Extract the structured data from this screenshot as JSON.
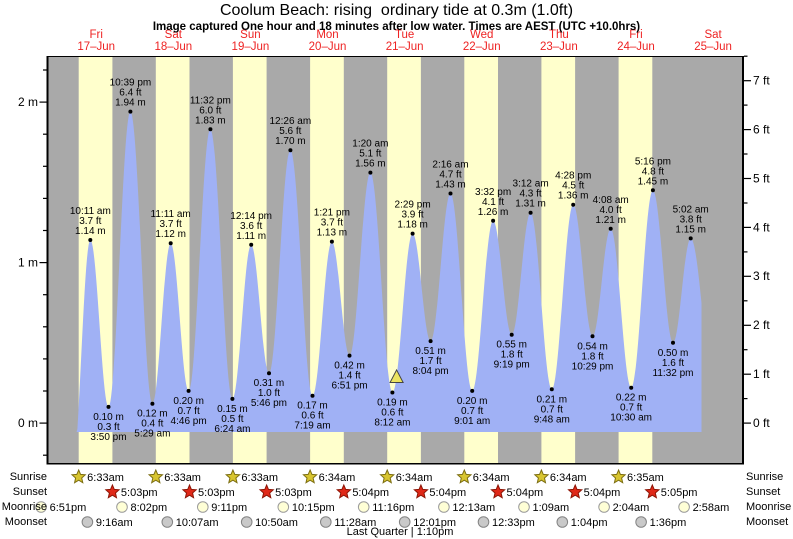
{
  "title": "Coolum Beach: rising  ordinary tide at 0.3m (1.0ft)",
  "subtitle": "Image captured One hour and 18 minutes after low water. Times are AEST (UTC +10.0hrs)",
  "days": [
    {
      "name": "Fri",
      "date": "17–Jun"
    },
    {
      "name": "Sat",
      "date": "18–Jun"
    },
    {
      "name": "Sun",
      "date": "19–Jun"
    },
    {
      "name": "Mon",
      "date": "20–Jun"
    },
    {
      "name": "Tue",
      "date": "21–Jun"
    },
    {
      "name": "Wed",
      "date": "22–Jun"
    },
    {
      "name": "Thu",
      "date": "23–Jun"
    },
    {
      "name": "Fri",
      "date": "24–Jun"
    },
    {
      "name": "Sat",
      "date": "25–Jun"
    }
  ],
  "axes": {
    "left_ticks": [
      {
        "v": 0,
        "label": "0 m"
      },
      {
        "v": 1,
        "label": "1 m"
      },
      {
        "v": 2,
        "label": "2 m"
      }
    ],
    "right_ticks": [
      {
        "v": 0,
        "label": "0 ft"
      },
      {
        "v": 1,
        "label": "1 ft"
      },
      {
        "v": 2,
        "label": "2 ft"
      },
      {
        "v": 3,
        "label": "3 ft"
      },
      {
        "v": 4,
        "label": "4 ft"
      },
      {
        "v": 5,
        "label": "5 ft"
      },
      {
        "v": 6,
        "label": "6 ft"
      },
      {
        "v": 7,
        "label": "7 ft"
      }
    ]
  },
  "rows": {
    "sunrise": {
      "label": "Sunrise",
      "events": [
        {
          "t": 6.55,
          "time": "6:33am"
        },
        {
          "t": 30.55,
          "time": "6:33am"
        },
        {
          "t": 54.55,
          "time": "6:33am"
        },
        {
          "t": 78.57,
          "time": "6:34am"
        },
        {
          "t": 102.57,
          "time": "6:34am"
        },
        {
          "t": 126.57,
          "time": "6:34am"
        },
        {
          "t": 150.57,
          "time": "6:34am"
        },
        {
          "t": 174.58,
          "time": "6:35am"
        }
      ]
    },
    "sunset": {
      "label": "Sunset",
      "events": [
        {
          "t": 17.05,
          "time": "5:03pm"
        },
        {
          "t": 41.05,
          "time": "5:03pm"
        },
        {
          "t": 65.05,
          "time": "5:03pm"
        },
        {
          "t": 89.07,
          "time": "5:04pm"
        },
        {
          "t": 113.07,
          "time": "5:04pm"
        },
        {
          "t": 137.07,
          "time": "5:04pm"
        },
        {
          "t": 161.07,
          "time": "5:04pm"
        },
        {
          "t": 185.08,
          "time": "5:05pm"
        }
      ]
    },
    "moonrise": {
      "label": "Moonrise",
      "events": [
        {
          "t": -5.15,
          "time": "6:51pm"
        },
        {
          "t": 20.03,
          "time": "8:02pm"
        },
        {
          "t": 45.18,
          "time": "9:11pm"
        },
        {
          "t": 70.25,
          "time": "10:15pm"
        },
        {
          "t": 95.27,
          "time": "11:16pm"
        },
        {
          "t": 120.22,
          "time": "12:13am"
        },
        {
          "t": 145.15,
          "time": "1:09am"
        },
        {
          "t": 170.07,
          "time": "2:04am"
        },
        {
          "t": 194.97,
          "time": "2:58am"
        }
      ]
    },
    "moonset": {
      "label": "Moonset",
      "events": [
        {
          "t": 9.27,
          "time": "9:16am"
        },
        {
          "t": 34.12,
          "time": "10:07am"
        },
        {
          "t": 58.83,
          "time": "10:50am"
        },
        {
          "t": 83.47,
          "time": "11:28am"
        },
        {
          "t": 108.02,
          "time": "12:01pm"
        },
        {
          "t": 132.55,
          "time": "12:33pm"
        },
        {
          "t": 157.07,
          "time": "1:04pm"
        },
        {
          "t": 181.6,
          "time": "1:36pm"
        }
      ]
    }
  },
  "moon_phase": "Last Quarter | 1:10pm",
  "chart_data": {
    "type": "area",
    "title": "Coolum Beach tide heights 17–25 Jun",
    "x_unit": "hours from Fri 17-Jun 00:00 AEST",
    "x_range": [
      -3,
      213
    ],
    "ylabel_left": "m",
    "ylabel_right": "ft",
    "ylim_m": [
      -0.25,
      2.28
    ],
    "ylim_ft": [
      0,
      7
    ],
    "extremes": [
      {
        "type": "high",
        "t": 10.18,
        "h": 1.14,
        "time": "10:11 am",
        "ft": "3.7 ft",
        "m": "1.14 m"
      },
      {
        "type": "low",
        "t": 15.83,
        "h": 0.1,
        "time": "3:50 pm",
        "ft": "0.3 ft",
        "m": "0.10 m"
      },
      {
        "type": "high",
        "t": 22.65,
        "h": 1.94,
        "time": "10:39 pm",
        "ft": "6.4 ft",
        "m": "1.94 m"
      },
      {
        "type": "low",
        "t": 29.48,
        "h": 0.12,
        "time": "5:29 am",
        "ft": "0.4 ft",
        "m": "0.12 m"
      },
      {
        "type": "high",
        "t": 35.18,
        "h": 1.12,
        "time": "11:11 am",
        "ft": "3.7 ft",
        "m": "1.12 m"
      },
      {
        "type": "low",
        "t": 40.77,
        "h": 0.2,
        "time": "4:46 pm",
        "ft": "0.7 ft",
        "m": "0.20 m"
      },
      {
        "type": "high",
        "t": 47.53,
        "h": 1.83,
        "time": "11:32 pm",
        "ft": "6.0 ft",
        "m": "1.83 m"
      },
      {
        "type": "low",
        "t": 54.4,
        "h": 0.15,
        "time": "6:24 am",
        "ft": "0.5 ft",
        "m": "0.15 m"
      },
      {
        "type": "high",
        "t": 60.23,
        "h": 1.11,
        "time": "12:14 pm",
        "ft": "3.6 ft",
        "m": "1.11 m"
      },
      {
        "type": "low",
        "t": 65.77,
        "h": 0.31,
        "time": "5:46 pm",
        "ft": "1.0 ft",
        "m": "0.31 m"
      },
      {
        "type": "high",
        "t": 72.43,
        "h": 1.7,
        "time": "12:26 am",
        "ft": "5.6 ft",
        "m": "1.70 m"
      },
      {
        "type": "low",
        "t": 79.32,
        "h": 0.17,
        "time": "7:19 am",
        "ft": "0.6 ft",
        "m": "0.17 m"
      },
      {
        "type": "high",
        "t": 85.35,
        "h": 1.13,
        "time": "1:21 pm",
        "ft": "3.7 ft",
        "m": "1.13 m"
      },
      {
        "type": "low",
        "t": 90.85,
        "h": 0.42,
        "time": "6:51 pm",
        "ft": "1.4 ft",
        "m": "0.42 m"
      },
      {
        "type": "high",
        "t": 97.33,
        "h": 1.56,
        "time": "1:20 am",
        "ft": "5.1 ft",
        "m": "1.56 m"
      },
      {
        "type": "low",
        "t": 104.2,
        "h": 0.19,
        "time": "8:12 am",
        "ft": "0.6 ft",
        "m": "0.19 m"
      },
      {
        "type": "high",
        "t": 110.48,
        "h": 1.18,
        "time": "2:29 pm",
        "ft": "3.9 ft",
        "m": "1.18 m"
      },
      {
        "type": "low",
        "t": 116.07,
        "h": 0.51,
        "time": "8:04 pm",
        "ft": "1.7 ft",
        "m": "0.51 m"
      },
      {
        "type": "high",
        "t": 122.27,
        "h": 1.43,
        "time": "2:16 am",
        "ft": "4.7 ft",
        "m": "1.43 m"
      },
      {
        "type": "low",
        "t": 129.02,
        "h": 0.2,
        "time": "9:01 am",
        "ft": "0.7 ft",
        "m": "0.20 m"
      },
      {
        "type": "high",
        "t": 135.53,
        "h": 1.26,
        "time": "3:32 pm",
        "ft": "4.1 ft",
        "m": "1.26 m"
      },
      {
        "type": "low",
        "t": 141.32,
        "h": 0.55,
        "time": "9:19 pm",
        "ft": "1.8 ft",
        "m": "0.55 m"
      },
      {
        "type": "high",
        "t": 147.2,
        "h": 1.31,
        "time": "3:12 am",
        "ft": "4.3 ft",
        "m": "1.31 m"
      },
      {
        "type": "low",
        "t": 153.8,
        "h": 0.21,
        "time": "9:48 am",
        "ft": "0.7 ft",
        "m": "0.21 m"
      },
      {
        "type": "high",
        "t": 160.47,
        "h": 1.36,
        "time": "4:28 pm",
        "ft": "4.5 ft",
        "m": "1.36 m"
      },
      {
        "type": "low",
        "t": 166.48,
        "h": 0.54,
        "time": "10:29 pm",
        "ft": "1.8 ft",
        "m": "0.54 m"
      },
      {
        "type": "high",
        "t": 172.13,
        "h": 1.21,
        "time": "4:08 am",
        "ft": "4.0 ft",
        "m": "1.21 m"
      },
      {
        "type": "low",
        "t": 178.5,
        "h": 0.22,
        "time": "10:30 am",
        "ft": "0.7 ft",
        "m": "0.22 m"
      },
      {
        "type": "high",
        "t": 185.27,
        "h": 1.45,
        "time": "5:16 pm",
        "ft": "4.8 ft",
        "m": "1.45 m"
      },
      {
        "type": "low",
        "t": 191.53,
        "h": 0.5,
        "time": "11:32 pm",
        "ft": "1.6 ft",
        "m": "0.50 m"
      },
      {
        "type": "high",
        "t": 197.03,
        "h": 1.15,
        "time": "5:02 am",
        "ft": "3.8 ft",
        "m": "1.15 m"
      }
    ],
    "data_window": {
      "t_start": 4.4,
      "t_end": 200.4,
      "fill_base_m": -0.056
    },
    "current_marker": {
      "t": 105.5,
      "h": 0.29,
      "note": "1h18m after low water"
    }
  },
  "colors": {
    "night_band": "#a9a9a9",
    "day_band": "#ffffcc",
    "tide_fill": "#a0b1f5",
    "day_label": "#ee2222",
    "text": "#000000",
    "sun_star": "#d8c530",
    "sun_star_edge": "#7c6e12",
    "sunset_star": "#e02818",
    "sunset_star_edge": "#8c1505",
    "moonrise_circle": "#ffffd6",
    "moonset_circle": "#c9c9c9",
    "marker_triangle": "#ece460"
  }
}
